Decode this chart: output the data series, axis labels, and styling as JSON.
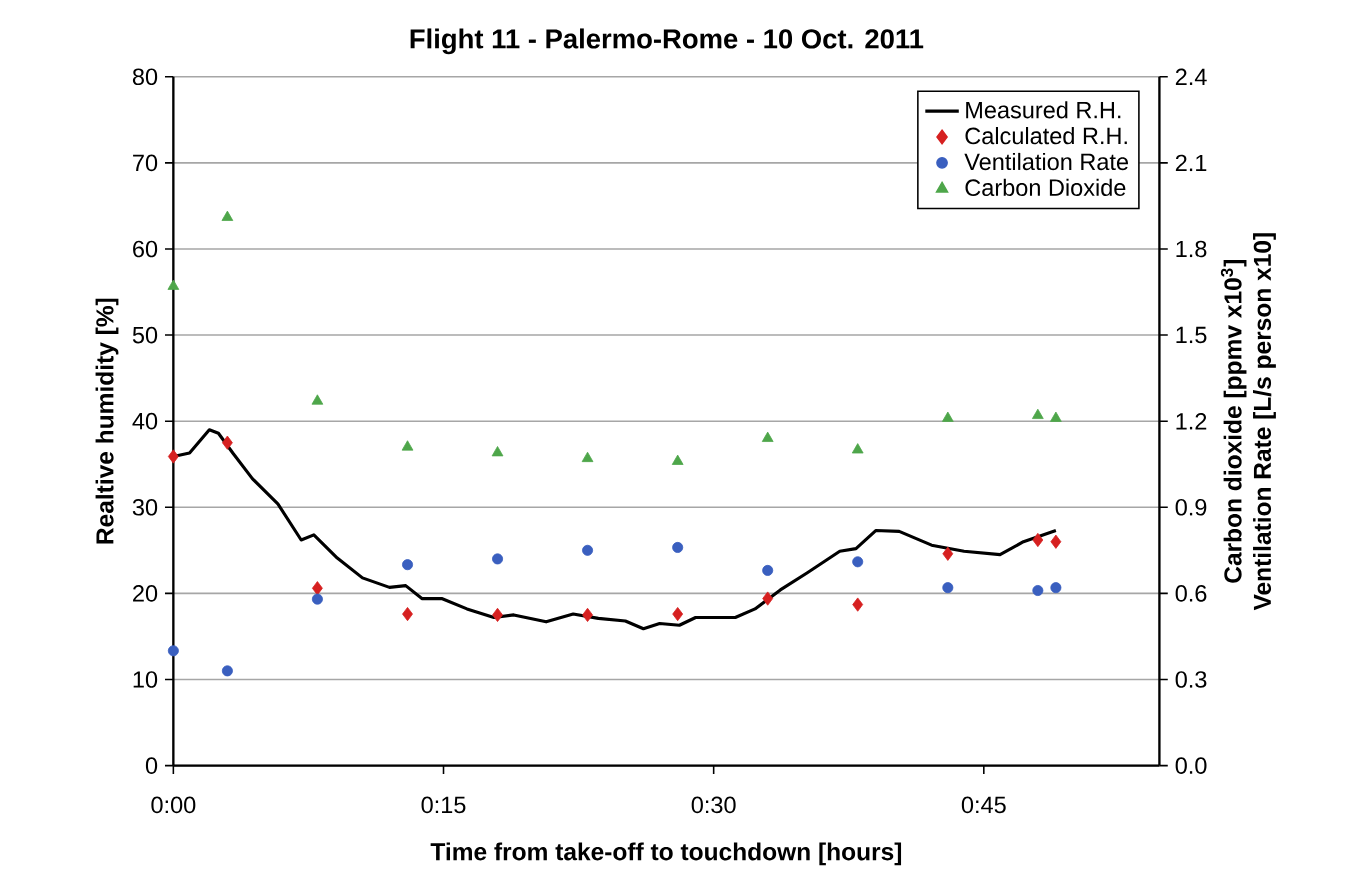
{
  "chart_data": {
    "type": "scatter",
    "title": "Flight 11 - Palermo-Rome - 10 Oct. 2011",
    "xlabel": "Time from take-off to touchdown [hours]",
    "ylabel": "Realtive humidity [%]",
    "y2label": "Carbon dioxide [ppmv x10$^{3}$]\nVentilation Rate [L/s person x10]",
    "xlim": [
      0,
      0.9125
    ],
    "xticks": [
      {
        "value": 0,
        "label": "0:00"
      },
      {
        "value": 0.25,
        "label": "0:15"
      },
      {
        "value": 0.5,
        "label": "0:30"
      },
      {
        "value": 0.75,
        "label": "0:45"
      }
    ],
    "ylim": [
      0,
      80
    ],
    "yticks": [
      0,
      10,
      20,
      30,
      40,
      50,
      60,
      70,
      80
    ],
    "y2lim": [
      0,
      2.4
    ],
    "y2ticks": [
      {
        "value": 0,
        "label": "0.0"
      },
      {
        "value": 0.3,
        "label": "0.3"
      },
      {
        "value": 0.6,
        "label": "0.6"
      },
      {
        "value": 0.9,
        "label": "0.9"
      },
      {
        "value": 1.2,
        "label": "1.2"
      },
      {
        "value": 1.5,
        "label": "1.5"
      },
      {
        "value": 1.8,
        "label": "1.8"
      },
      {
        "value": 2.1,
        "label": "2.1"
      },
      {
        "value": 2.4,
        "label": "2.4"
      }
    ],
    "grid": "y",
    "legend": "top right",
    "series": [
      {
        "name": "Measured R.H.",
        "type": "line",
        "marker": "none",
        "color": "#000000",
        "x": [
          0,
          0.015,
          0.0333,
          0.0417,
          0.055,
          0.0733,
          0.0967,
          0.1183,
          0.13,
          0.1517,
          0.175,
          0.2,
          0.215,
          0.23,
          0.2483,
          0.2717,
          0.2967,
          0.315,
          0.345,
          0.37,
          0.3933,
          0.4183,
          0.435,
          0.45,
          0.4683,
          0.4833,
          0.52,
          0.5383,
          0.5617,
          0.5867,
          0.6167,
          0.6317,
          0.65,
          0.6717,
          0.7017,
          0.7317,
          0.765,
          0.7867,
          0.8167
        ],
        "values": [
          35.9,
          36.3,
          39.0,
          38.6,
          36.3,
          33.3,
          30.4,
          26.2,
          26.8,
          24.1,
          21.8,
          20.7,
          20.9,
          19.4,
          19.4,
          18.2,
          17.2,
          17.5,
          16.7,
          17.6,
          17.1,
          16.8,
          15.9,
          16.5,
          16.3,
          17.2,
          17.2,
          18.2,
          20.4,
          22.4,
          24.9,
          25.2,
          27.3,
          27.2,
          25.6,
          24.9,
          24.5,
          26.0,
          27.3
        ]
      },
      {
        "name": "Calculated R.H.",
        "marker": "diamond",
        "color": "#d62020",
        "x": [
          0,
          0.05,
          0.1333,
          0.2167,
          0.3,
          0.3833,
          0.4667,
          0.55,
          0.6333,
          0.7167,
          0.8,
          0.8167
        ],
        "values": [
          35.9,
          37.5,
          20.6,
          17.6,
          17.5,
          17.5,
          17.6,
          19.4,
          18.7,
          24.6,
          26.2,
          26.0
        ]
      },
      {
        "name": "Ventilation Rate",
        "marker": "circle",
        "axis": "y2",
        "color": "#3a5fbf",
        "x": [
          0,
          0.05,
          0.1333,
          0.2167,
          0.3,
          0.3833,
          0.4667,
          0.55,
          0.6333,
          0.7167,
          0.8,
          0.8167
        ],
        "values": [
          0.4,
          0.33,
          0.58,
          0.7,
          0.72,
          0.75,
          0.76,
          0.68,
          0.71,
          0.62,
          0.61,
          0.62
        ]
      },
      {
        "name": "Carbon Dioxide",
        "marker": "triangle",
        "axis": "y2",
        "color": "#4ea64a",
        "x": [
          0,
          0.05,
          0.1333,
          0.2167,
          0.3,
          0.3833,
          0.4667,
          0.55,
          0.6333,
          0.7167,
          0.8,
          0.8167
        ],
        "values": [
          1.67,
          1.91,
          1.27,
          1.11,
          1.09,
          1.07,
          1.06,
          1.14,
          1.1,
          1.21,
          1.22,
          1.21
        ]
      }
    ]
  }
}
